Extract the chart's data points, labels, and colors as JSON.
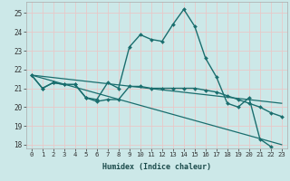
{
  "xlabel": "Humidex (Indice chaleur)",
  "ylabel": "",
  "bg_color": "#cce8e8",
  "grid_color": "#b0d8d8",
  "line_color": "#1a6e6e",
  "xlim": [
    -0.5,
    23.5
  ],
  "ylim": [
    17.8,
    25.6
  ],
  "yticks": [
    18,
    19,
    20,
    21,
    22,
    23,
    24,
    25
  ],
  "xticks": [
    0,
    1,
    2,
    3,
    4,
    5,
    6,
    7,
    8,
    9,
    10,
    11,
    12,
    13,
    14,
    15,
    16,
    17,
    18,
    19,
    20,
    21,
    22,
    23
  ],
  "series": [
    {
      "x": [
        0,
        1,
        2,
        3,
        4,
        5,
        6,
        7,
        8,
        9,
        10,
        11,
        12,
        13,
        14,
        15,
        16,
        17,
        18,
        19,
        20,
        21,
        22,
        23
      ],
      "y": [
        21.7,
        21.0,
        21.3,
        21.2,
        21.2,
        20.5,
        20.4,
        21.3,
        21.0,
        23.2,
        23.85,
        23.6,
        23.5,
        24.4,
        25.2,
        24.3,
        22.6,
        21.6,
        20.2,
        20.0,
        20.5,
        18.3,
        17.9,
        null
      ],
      "marker": true,
      "linewidth": 1.0
    },
    {
      "x": [
        0,
        1,
        2,
        3,
        4,
        5,
        6,
        7,
        8,
        9,
        10,
        11,
        12,
        13,
        14,
        15,
        16,
        17,
        18,
        19,
        20,
        21,
        22,
        23
      ],
      "y": [
        21.7,
        21.0,
        21.3,
        21.2,
        21.2,
        20.5,
        20.3,
        20.4,
        20.4,
        21.1,
        21.1,
        21.0,
        21.0,
        21.0,
        21.0,
        21.0,
        20.9,
        20.8,
        20.6,
        20.4,
        20.2,
        20.0,
        19.7,
        19.5
      ],
      "marker": true,
      "linewidth": 1.0
    },
    {
      "x": [
        0,
        23
      ],
      "y": [
        21.7,
        18.0
      ],
      "marker": false,
      "linewidth": 0.9
    },
    {
      "x": [
        0,
        23
      ],
      "y": [
        21.7,
        20.2
      ],
      "marker": false,
      "linewidth": 0.9
    }
  ]
}
